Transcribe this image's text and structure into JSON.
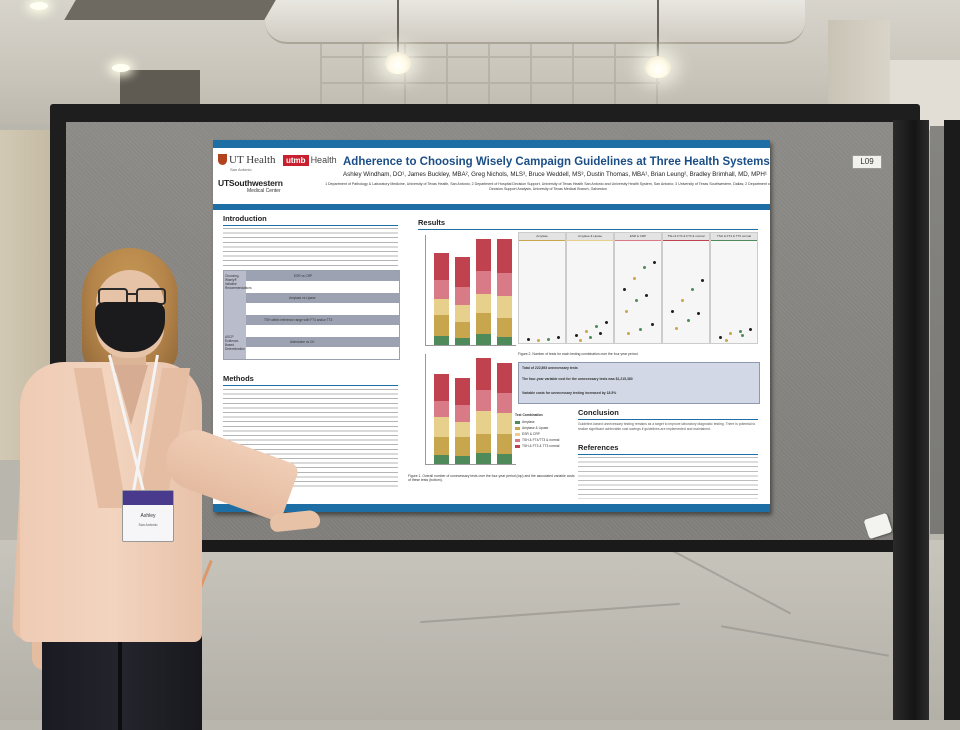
{
  "poster": {
    "title": "Adherence to Choosing Wisely Campaign Guidelines at Three Health Systems",
    "authors": "Ashley Windham, DO¹, James Buckley, MBA², Greg Nichols, MLS³, Bruce Weddell, MS³, Dustin Thomas, MBA¹, Brian Leung², Bradley Brimhall, MD, MPH¹",
    "affiliations": "1 Department of Pathology & Laboratory Medicine, University of Texas Health, San Antonio; 2 Department of Hospital Decision Support, University of Texas Health San Antonio and University Health System, San Antonio; 3 University of Texas Southwestern, Dallas; 2 Department of Decision Support Analysis, University of Texas Medical Branch, Galveston",
    "logos": {
      "ut_health": "UT Health",
      "ut_health_sub": "San Antonio",
      "utmb_box": "utmb",
      "utmb_text": "Health",
      "ut_southwestern": "UTSouthwestern",
      "ut_southwestern_sub": "Medical Center"
    },
    "sections": {
      "introduction": "Introduction",
      "methods": "Methods",
      "results": "Results",
      "conclusion": "Conclusion",
      "references": "References"
    },
    "table": {
      "row_labels": [
        "Choosing Wisely® Initiative Recommendations",
        "ASCP Evidence-Based Determination"
      ],
      "headers": [
        "ESR vs CRP",
        "Amylase vs Lipase",
        "TSH within reference range with FT4 and/or TT3",
        "Adenosine vs CK"
      ]
    },
    "results_callout": {
      "highlight": "Total of 222,893 unnecessary tests",
      "highlight2": "The four-year variable cost for the unnecessary tests was $1,215,380",
      "highlight3": "Variable costs for unnecessary testing increased by 18.5%"
    },
    "conclusion_text": "Guideline-based unnecessary testing remains as a target to improve laboratory diagnostic testing. There is potential to realize significant achievable cost savings if guidelines are implemented and maintained.",
    "figure1_caption": "Figure 1. Overall number of unnecessary tests over the four-year period (top) and the associated variable costs of these tests (bottom).",
    "figure2_caption": "Figure 2. Number of tests for each testing combination over the four year period.",
    "legend_title": "Test Combination",
    "legend_items": [
      "Amylase",
      "Amylase & Lipase",
      "ESR & CRP",
      "TSH & FT4/TT3 & normal",
      "TSH & FT3 & TT3 normal"
    ],
    "scatter_panels": [
      "Amylase",
      "Amylase & Lipase",
      "ESR & CRP",
      "TSH & FT4 & FT3 & normal",
      "TSH & FT4 & TT3 normal"
    ],
    "colors": {
      "blue_bar": "#1c6ea4",
      "title": "#1b4e86",
      "series": [
        "#4f8a5b",
        "#c7a64d",
        "#e7d08b",
        "#d97b86",
        "#c0424f"
      ]
    }
  },
  "board_tag": "L09",
  "badge": {
    "name": "Ashley",
    "sub": "San Antonio"
  }
}
